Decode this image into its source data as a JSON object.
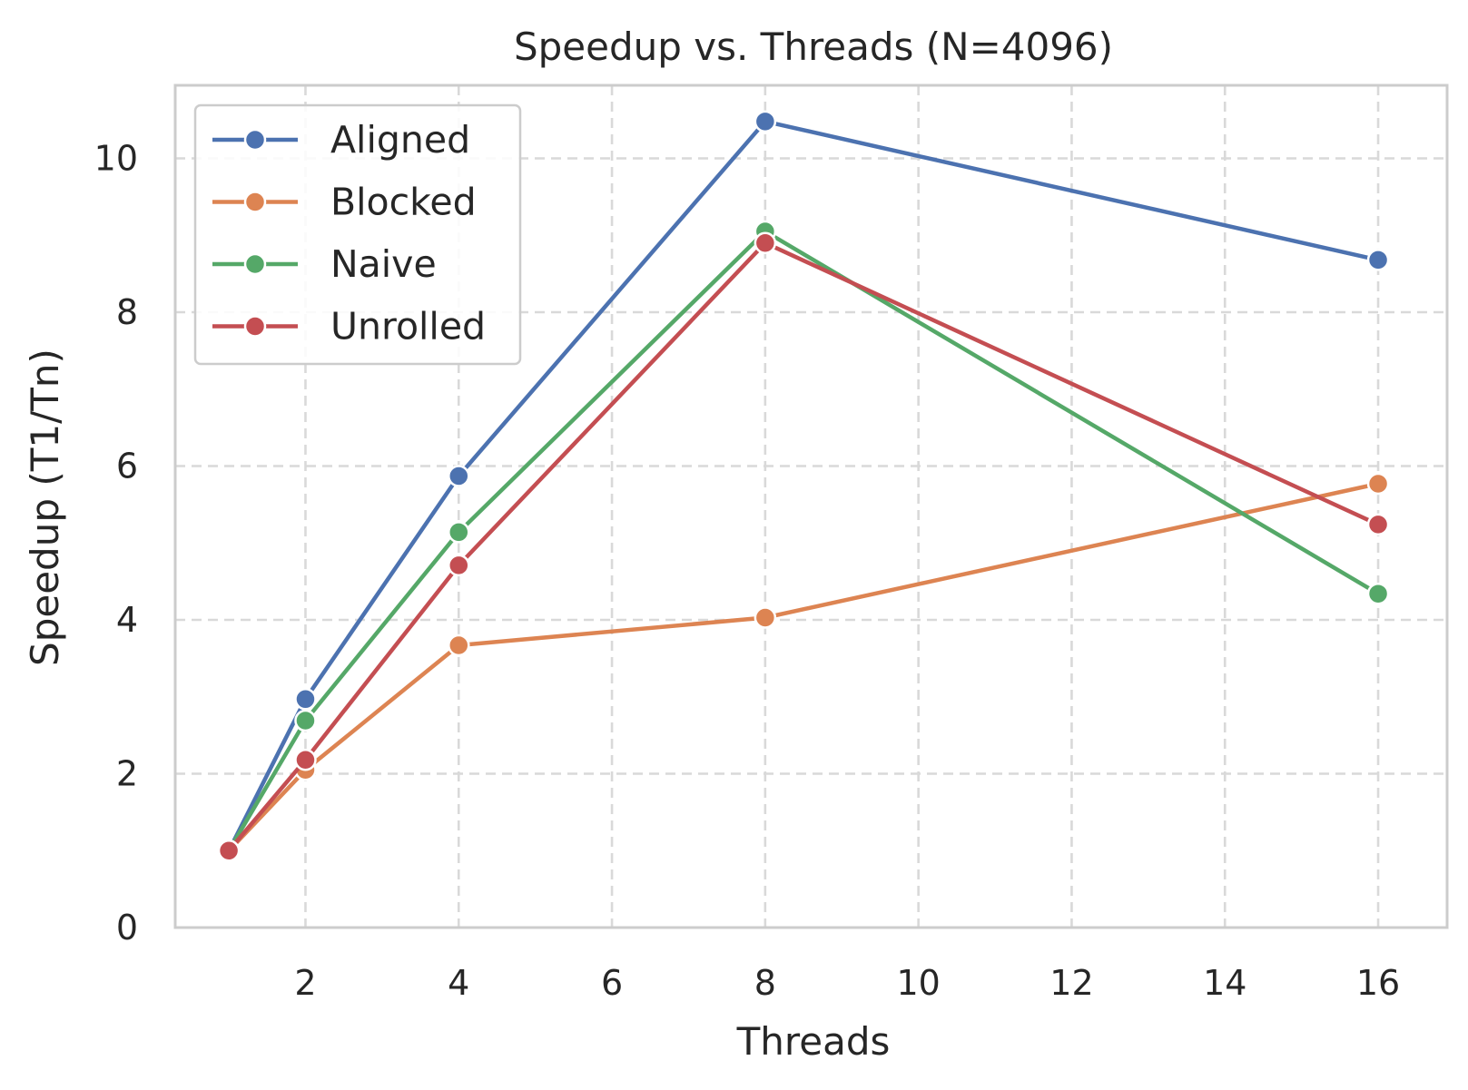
{
  "chart_data": {
    "type": "line",
    "title": "Speedup vs. Threads (N=4096)",
    "xlabel": "Threads",
    "ylabel": "Speedup (T1/Tn)",
    "xlim": [
      0.3,
      16.9
    ],
    "ylim": [
      0,
      10.95
    ],
    "xticks": [
      2,
      4,
      6,
      8,
      10,
      12,
      14,
      16
    ],
    "yticks": [
      0,
      2,
      4,
      6,
      8,
      10
    ],
    "grid": true,
    "legend_position": "top-left",
    "x": [
      1,
      2,
      4,
      8,
      16
    ],
    "series": [
      {
        "name": "Aligned",
        "color": "#4c72b0",
        "values": [
          1.0,
          2.97,
          5.87,
          10.48,
          8.68
        ]
      },
      {
        "name": "Blocked",
        "color": "#dd8452",
        "values": [
          1.0,
          2.05,
          3.67,
          4.03,
          5.77
        ]
      },
      {
        "name": "Naive",
        "color": "#55a868",
        "values": [
          1.0,
          2.69,
          5.14,
          9.05,
          4.34
        ]
      },
      {
        "name": "Unrolled",
        "color": "#c44e52",
        "values": [
          1.0,
          2.18,
          4.71,
          8.9,
          5.24
        ]
      }
    ]
  }
}
